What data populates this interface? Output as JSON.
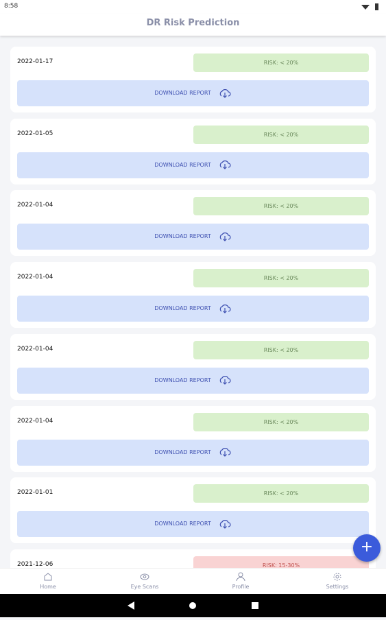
{
  "status": {
    "time": "8:58"
  },
  "title": "DR Risk Prediction",
  "download_label": "DOWNLOAD REPORT",
  "records": [
    {
      "date": "2022-01-17",
      "risk": "RISK: < 20%",
      "color": "#d9f0cc"
    },
    {
      "date": "2022-01-05",
      "risk": "RISK: < 20%",
      "color": "#d9f0cc"
    },
    {
      "date": "2022-01-04",
      "risk": "RISK: < 20%",
      "color": "#d9f0cc"
    },
    {
      "date": "2022-01-04",
      "risk": "RISK: < 20%",
      "color": "#d9f0cc"
    },
    {
      "date": "2022-01-04",
      "risk": "RISK: < 20%",
      "color": "#d9f0cc"
    },
    {
      "date": "2022-01-04",
      "risk": "RISK: < 20%",
      "color": "#d9f0cc"
    },
    {
      "date": "2022-01-01",
      "risk": "RISK: < 20%",
      "color": "#d9f0cc"
    },
    {
      "date": "2021-12-06",
      "risk": "RISK: 15-30%",
      "color": "#f9d3d3"
    }
  ],
  "nav": [
    "Home",
    "Eye Scans",
    "Profile",
    "Settings"
  ]
}
